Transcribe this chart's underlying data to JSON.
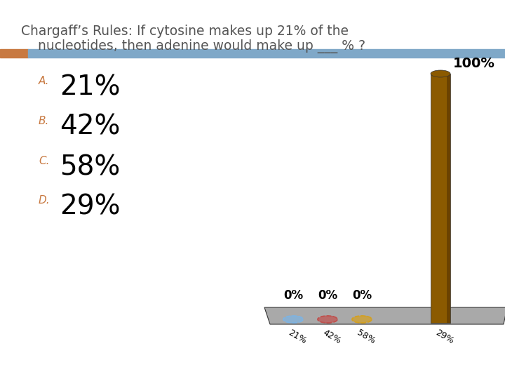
{
  "title_line1": "Chargaff’s Rules: If cytosine makes up 21% of the",
  "title_line2": "    nucleotides, then adenine would make up ___ % ?",
  "choices": [
    {
      "label": "A.",
      "text": "21%"
    },
    {
      "label": "B.",
      "text": "42%"
    },
    {
      "label": "C.",
      "text": "58%"
    },
    {
      "label": "D.",
      "text": "29%"
    }
  ],
  "label_color": "#C87941",
  "bar_categories": [
    "21%",
    "42%",
    "58%",
    "29%"
  ],
  "bar_values": [
    0,
    0,
    0,
    100
  ],
  "bar_color": "#8B5A00",
  "ellipse_colors": [
    "#7EB4E3",
    "#C0504D",
    "#D4A020",
    "#8B5A00"
  ],
  "floor_color": "#A9A9A9",
  "header_stripe_left_color": "#C87941",
  "header_stripe_right_color": "#7FA8C8",
  "background_color": "#FFFFFF",
  "title_fontsize": 13.5,
  "choice_label_fontsize": 11,
  "choice_text_fontsize": 28,
  "bar_label_fontsize": 12,
  "cat_label_fontsize": 9
}
